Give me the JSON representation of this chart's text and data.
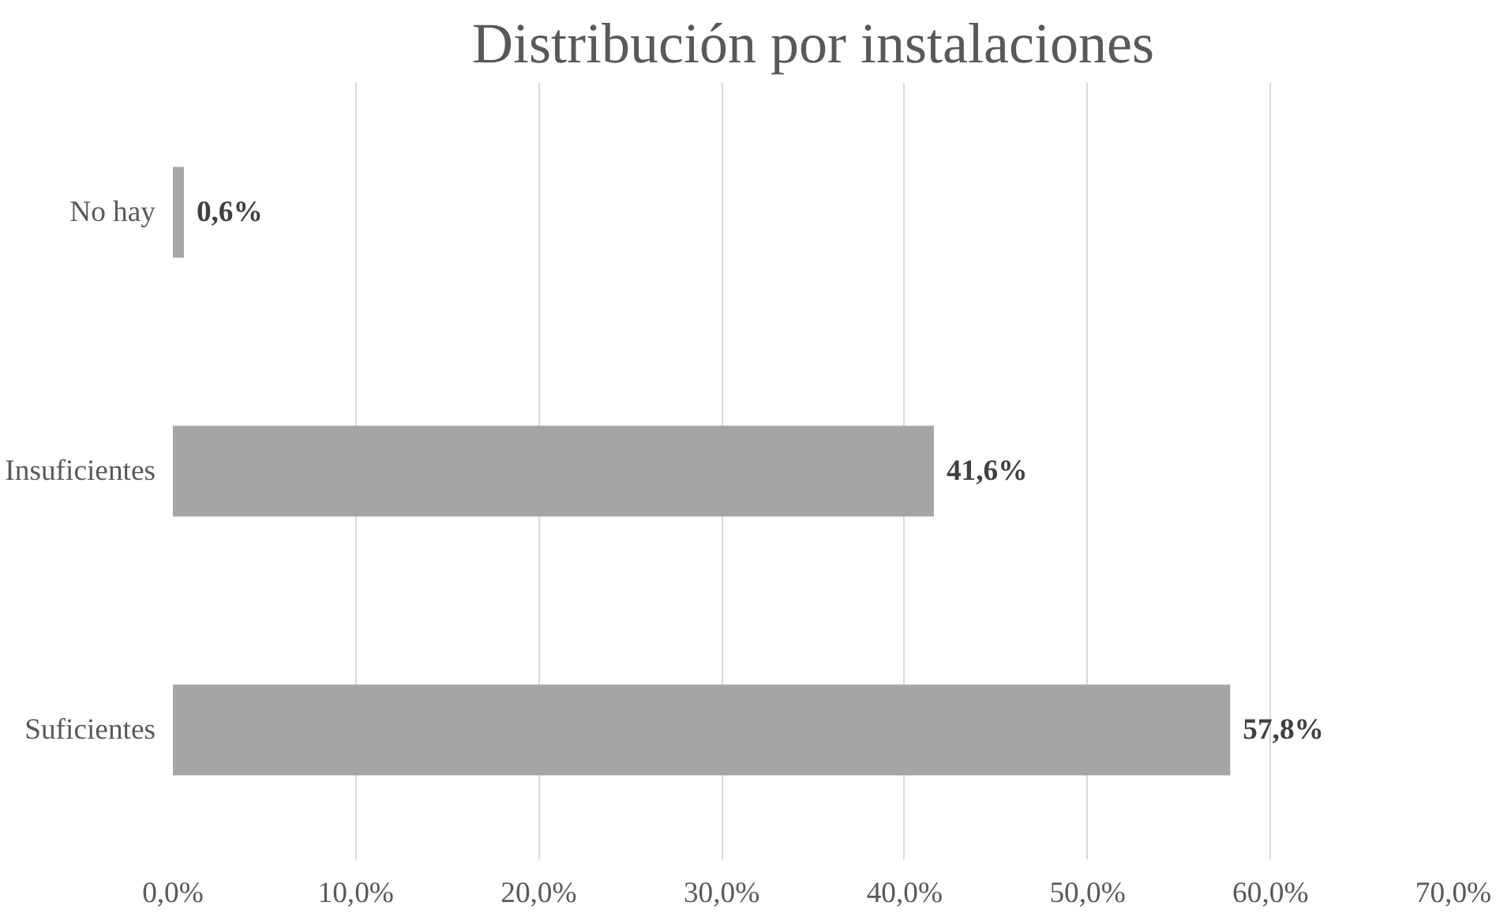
{
  "chart_data": {
    "type": "bar",
    "orientation": "horizontal",
    "title": "Distribución por instalaciones",
    "categories": [
      "No hay",
      "Insuficientes",
      "Suficientes"
    ],
    "values": [
      0.6,
      41.6,
      57.8
    ],
    "value_labels": [
      "0,6%",
      "41,6%",
      "57,8%"
    ],
    "color": "#a5a5a5",
    "xlim": [
      0,
      70
    ],
    "xticks": [
      {
        "value": 0,
        "label": "0,0%"
      },
      {
        "value": 10,
        "label": "10,0%"
      },
      {
        "value": 20,
        "label": "20,0%"
      },
      {
        "value": 30,
        "label": "30,0%"
      },
      {
        "value": 40,
        "label": "40,0%"
      },
      {
        "value": 50,
        "label": "50,0%"
      },
      {
        "value": 60,
        "label": "60,0%"
      },
      {
        "value": 70,
        "label": "70,0%"
      }
    ],
    "grid": "x"
  }
}
